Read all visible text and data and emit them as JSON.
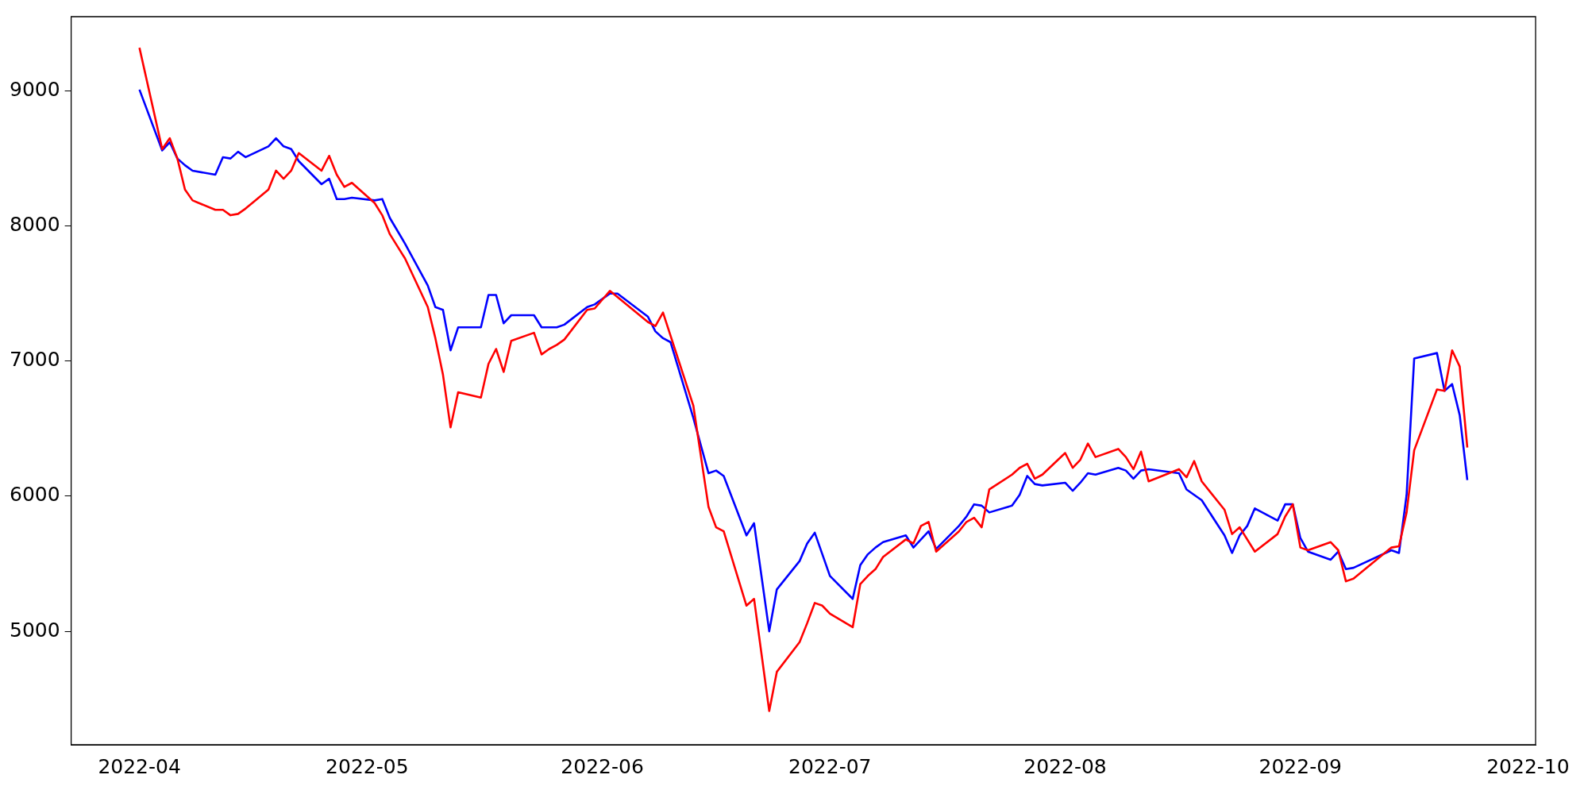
{
  "chart_data": {
    "type": "line",
    "xlim": [
      "2022-03-23",
      "2022-10-02"
    ],
    "ylim": [
      4160,
      9550
    ],
    "xticks": [
      "2022-04",
      "2022-05",
      "2022-06",
      "2022-07",
      "2022-08",
      "2022-09",
      "2022-10"
    ],
    "yticks": [
      5000,
      6000,
      7000,
      8000,
      9000
    ],
    "series": [
      {
        "color": "#ff0000",
        "x": [
          "2022-04-01",
          "2022-04-04",
          "2022-04-05",
          "2022-04-06",
          "2022-04-07",
          "2022-04-08",
          "2022-04-11",
          "2022-04-12",
          "2022-04-13",
          "2022-04-14",
          "2022-04-15",
          "2022-04-18",
          "2022-04-19",
          "2022-04-20",
          "2022-04-21",
          "2022-04-22",
          "2022-04-25",
          "2022-04-26",
          "2022-04-27",
          "2022-04-28",
          "2022-04-29",
          "2022-05-02",
          "2022-05-03",
          "2022-05-04",
          "2022-05-06",
          "2022-05-09",
          "2022-05-10",
          "2022-05-11",
          "2022-05-12",
          "2022-05-13",
          "2022-05-16",
          "2022-05-17",
          "2022-05-18",
          "2022-05-19",
          "2022-05-20",
          "2022-05-23",
          "2022-05-24",
          "2022-05-25",
          "2022-05-26",
          "2022-05-27",
          "2022-05-30",
          "2022-05-31",
          "2022-06-02",
          "2022-06-07",
          "2022-06-08",
          "2022-06-09",
          "2022-06-13",
          "2022-06-15",
          "2022-06-16",
          "2022-06-17",
          "2022-06-20",
          "2022-06-21",
          "2022-06-23",
          "2022-06-24",
          "2022-06-27",
          "2022-06-28",
          "2022-06-29",
          "2022-06-30",
          "2022-07-01",
          "2022-07-04",
          "2022-07-05",
          "2022-07-06",
          "2022-07-07",
          "2022-07-08",
          "2022-07-11",
          "2022-07-12",
          "2022-07-13",
          "2022-07-14",
          "2022-07-15",
          "2022-07-18",
          "2022-07-19",
          "2022-07-20",
          "2022-07-21",
          "2022-07-22",
          "2022-07-25",
          "2022-07-26",
          "2022-07-27",
          "2022-07-28",
          "2022-07-29",
          "2022-08-01",
          "2022-08-02",
          "2022-08-03",
          "2022-08-04",
          "2022-08-05",
          "2022-08-08",
          "2022-08-09",
          "2022-08-10",
          "2022-08-11",
          "2022-08-12",
          "2022-08-16",
          "2022-08-17",
          "2022-08-18",
          "2022-08-19",
          "2022-08-22",
          "2022-08-23",
          "2022-08-24",
          "2022-08-26",
          "2022-08-29",
          "2022-08-30",
          "2022-08-31",
          "2022-09-01",
          "2022-09-02",
          "2022-09-05",
          "2022-09-06",
          "2022-09-07",
          "2022-09-08",
          "2022-09-13",
          "2022-09-14",
          "2022-09-15",
          "2022-09-16",
          "2022-09-19",
          "2022-09-20",
          "2022-09-21",
          "2022-09-22",
          "2022-09-23"
        ],
        "values": [
          9320,
          8570,
          8650,
          8500,
          8270,
          8190,
          8120,
          8120,
          8080,
          8090,
          8130,
          8270,
          8410,
          8350,
          8410,
          8540,
          8410,
          8520,
          8380,
          8290,
          8320,
          8170,
          8080,
          7940,
          7760,
          7400,
          7170,
          6900,
          6510,
          6770,
          6730,
          6980,
          7090,
          6920,
          7150,
          7210,
          7050,
          7090,
          7120,
          7160,
          7380,
          7390,
          7520,
          7290,
          7260,
          7360,
          6670,
          5920,
          5770,
          5740,
          5190,
          5240,
          4410,
          4700,
          4920,
          5060,
          5210,
          5190,
          5130,
          5030,
          5350,
          5410,
          5460,
          5550,
          5680,
          5650,
          5780,
          5810,
          5590,
          5740,
          5810,
          5840,
          5770,
          6050,
          6160,
          6210,
          6240,
          6130,
          6160,
          6320,
          6210,
          6270,
          6390,
          6290,
          6350,
          6290,
          6200,
          6330,
          6110,
          6200,
          6140,
          6260,
          6110,
          5900,
          5720,
          5770,
          5590,
          5720,
          5850,
          5940,
          5620,
          5600,
          5660,
          5600,
          5370,
          5390,
          5620,
          5630,
          5880,
          6340,
          6790,
          6780,
          7080,
          6960,
          6360
        ]
      },
      {
        "color": "#0000ff",
        "x": [
          "2022-04-01",
          "2022-04-04",
          "2022-04-05",
          "2022-04-06",
          "2022-04-07",
          "2022-04-08",
          "2022-04-11",
          "2022-04-12",
          "2022-04-13",
          "2022-04-14",
          "2022-04-15",
          "2022-04-18",
          "2022-04-19",
          "2022-04-20",
          "2022-04-21",
          "2022-04-22",
          "2022-04-25",
          "2022-04-26",
          "2022-04-27",
          "2022-04-28",
          "2022-04-29",
          "2022-05-02",
          "2022-05-03",
          "2022-05-04",
          "2022-05-06",
          "2022-05-09",
          "2022-05-10",
          "2022-05-11",
          "2022-05-12",
          "2022-05-13",
          "2022-05-16",
          "2022-05-17",
          "2022-05-18",
          "2022-05-19",
          "2022-05-20",
          "2022-05-23",
          "2022-05-24",
          "2022-05-26",
          "2022-05-27",
          "2022-05-30",
          "2022-05-31",
          "2022-06-02",
          "2022-06-03",
          "2022-06-07",
          "2022-06-08",
          "2022-06-09",
          "2022-06-10",
          "2022-06-13",
          "2022-06-15",
          "2022-06-16",
          "2022-06-17",
          "2022-06-20",
          "2022-06-21",
          "2022-06-23",
          "2022-06-24",
          "2022-06-27",
          "2022-06-28",
          "2022-06-29",
          "2022-06-30",
          "2022-07-01",
          "2022-07-04",
          "2022-07-05",
          "2022-07-06",
          "2022-07-07",
          "2022-07-08",
          "2022-07-11",
          "2022-07-12",
          "2022-07-13",
          "2022-07-14",
          "2022-07-15",
          "2022-07-18",
          "2022-07-19",
          "2022-07-20",
          "2022-07-21",
          "2022-07-22",
          "2022-07-25",
          "2022-07-26",
          "2022-07-27",
          "2022-07-28",
          "2022-07-29",
          "2022-08-01",
          "2022-08-02",
          "2022-08-03",
          "2022-08-04",
          "2022-08-05",
          "2022-08-08",
          "2022-08-09",
          "2022-08-10",
          "2022-08-11",
          "2022-08-12",
          "2022-08-16",
          "2022-08-17",
          "2022-08-19",
          "2022-08-22",
          "2022-08-23",
          "2022-08-24",
          "2022-08-25",
          "2022-08-26",
          "2022-08-29",
          "2022-08-30",
          "2022-08-31",
          "2022-09-01",
          "2022-09-02",
          "2022-09-05",
          "2022-09-06",
          "2022-09-07",
          "2022-09-08",
          "2022-09-13",
          "2022-09-14",
          "2022-09-15",
          "2022-09-16",
          "2022-09-19",
          "2022-09-20",
          "2022-09-21",
          "2022-09-22",
          "2022-09-23"
        ],
        "values": [
          9010,
          8560,
          8620,
          8500,
          8450,
          8410,
          8380,
          8510,
          8500,
          8550,
          8510,
          8590,
          8650,
          8590,
          8570,
          8480,
          8310,
          8350,
          8200,
          8200,
          8210,
          8190,
          8200,
          8060,
          7870,
          7560,
          7400,
          7380,
          7080,
          7250,
          7250,
          7490,
          7490,
          7280,
          7340,
          7340,
          7250,
          7250,
          7270,
          7400,
          7420,
          7500,
          7500,
          7330,
          7220,
          7170,
          7140,
          6580,
          6170,
          6190,
          6150,
          5710,
          5800,
          5000,
          5310,
          5520,
          5650,
          5730,
          5570,
          5410,
          5240,
          5490,
          5570,
          5620,
          5660,
          5710,
          5620,
          5680,
          5740,
          5610,
          5780,
          5850,
          5940,
          5930,
          5880,
          5930,
          6010,
          6150,
          6090,
          6080,
          6100,
          6040,
          6100,
          6170,
          6160,
          6210,
          6190,
          6130,
          6190,
          6200,
          6170,
          6050,
          5970,
          5710,
          5580,
          5710,
          5780,
          5910,
          5820,
          5940,
          5940,
          5690,
          5590,
          5530,
          5590,
          5460,
          5470,
          5600,
          5580,
          6010,
          7020,
          7060,
          6780,
          6830,
          6600,
          6120
        ]
      }
    ]
  }
}
